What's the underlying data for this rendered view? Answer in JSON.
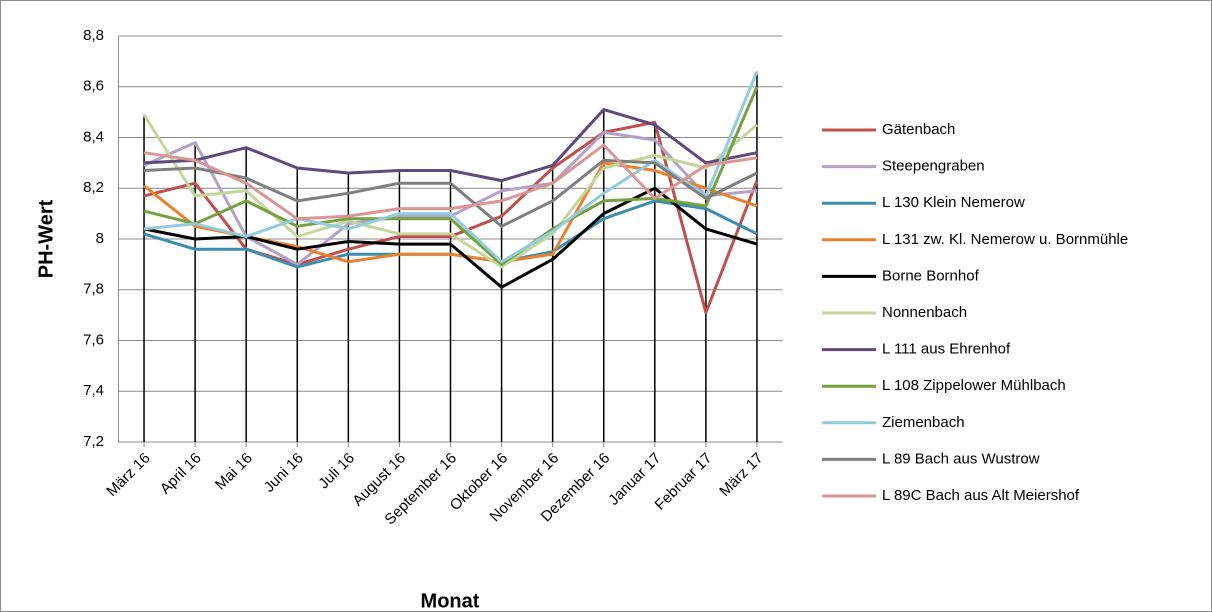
{
  "chart_data": {
    "type": "line",
    "ylabel": "PH-Wert",
    "xlabel": "Monat",
    "categories": [
      "März 16",
      "April 16",
      "Mai 16",
      "Juni 16",
      "Juli 16",
      "August 16",
      "September 16",
      "Oktober 16",
      "November 16",
      "Dezember 16",
      "Januar 17",
      "Februar 17",
      "März 17"
    ],
    "series": [
      {
        "name": "Gätenbach",
        "color": "#c0504d",
        "values": [
          8.17,
          8.22,
          7.96,
          7.9,
          7.96,
          8.01,
          8.01,
          8.09,
          8.28,
          8.42,
          8.46,
          7.71,
          8.23
        ]
      },
      {
        "name": "Steepengraben",
        "color": "#b3a2c7",
        "values": [
          8.29,
          8.38,
          8.01,
          7.9,
          8.06,
          8.09,
          8.09,
          8.19,
          8.22,
          8.42,
          8.39,
          8.17,
          8.19
        ]
      },
      {
        "name": "L 130 Klein Nemerow",
        "color": "#3b8fae",
        "values": [
          8.02,
          7.96,
          7.96,
          7.89,
          7.94,
          7.94,
          7.94,
          7.91,
          7.95,
          8.08,
          8.15,
          8.12,
          8.02
        ]
      },
      {
        "name": "L 131 zw. Kl. Nemerow u. Bornmühle",
        "color": "#e8822e",
        "values": [
          8.21,
          8.05,
          8.01,
          7.97,
          7.91,
          7.94,
          7.94,
          7.91,
          7.94,
          8.3,
          8.27,
          8.2,
          8.13
        ]
      },
      {
        "name": "Borne Bornhof",
        "color": "#000000",
        "values": [
          8.04,
          8.0,
          8.01,
          7.96,
          7.99,
          7.98,
          7.98,
          7.81,
          7.92,
          8.1,
          8.2,
          8.04,
          7.98
        ]
      },
      {
        "name": "Nonnenbach",
        "color": "#c3d69b",
        "values": [
          8.49,
          8.17,
          8.19,
          8.01,
          8.07,
          8.02,
          8.02,
          7.89,
          8.02,
          8.28,
          8.33,
          8.28,
          8.45
        ]
      },
      {
        "name": "L 111 aus Ehrenhof",
        "color": "#604a7b",
        "values": [
          8.3,
          8.31,
          8.36,
          8.28,
          8.26,
          8.27,
          8.27,
          8.23,
          8.29,
          8.51,
          8.45,
          8.3,
          8.34
        ]
      },
      {
        "name": "L 108 Zippelower Mühlbach",
        "color": "#77a040",
        "values": [
          8.11,
          8.06,
          8.15,
          8.05,
          8.08,
          8.08,
          8.08,
          7.9,
          8.04,
          8.15,
          8.16,
          8.13,
          8.6
        ]
      },
      {
        "name": "Ziemenbach",
        "color": "#93cddd",
        "values": [
          8.04,
          8.06,
          8.01,
          8.08,
          8.04,
          8.1,
          8.1,
          7.91,
          8.03,
          8.18,
          8.31,
          8.17,
          8.66
        ]
      },
      {
        "name": "L 89 Bach aus Wustrow",
        "color": "#7f7f7f",
        "values": [
          8.27,
          8.28,
          8.24,
          8.15,
          8.18,
          8.22,
          8.22,
          8.05,
          8.15,
          8.31,
          8.3,
          8.16,
          8.26
        ]
      },
      {
        "name": "L 89C Bach aus Alt Meiershof",
        "color": "#d99694",
        "values": [
          8.34,
          8.31,
          8.22,
          8.08,
          8.09,
          8.12,
          8.12,
          8.15,
          8.22,
          8.37,
          8.16,
          8.29,
          8.32
        ]
      }
    ],
    "ylim": [
      7.2,
      8.8
    ],
    "yticks": [
      {
        "value": 7.2,
        "label": "7,2"
      },
      {
        "value": 7.4,
        "label": "7,4"
      },
      {
        "value": 7.6,
        "label": "7,6"
      },
      {
        "value": 7.8,
        "label": "7,8"
      },
      8,
      {
        "value": 8.2,
        "label": "8,2"
      },
      {
        "value": 8.4,
        "label": "8,4"
      },
      {
        "value": 8.6,
        "label": "8,6"
      },
      {
        "value": 8.8,
        "label": "8,8"
      }
    ],
    "grid": true,
    "drop_lines": true,
    "legend": "right"
  }
}
